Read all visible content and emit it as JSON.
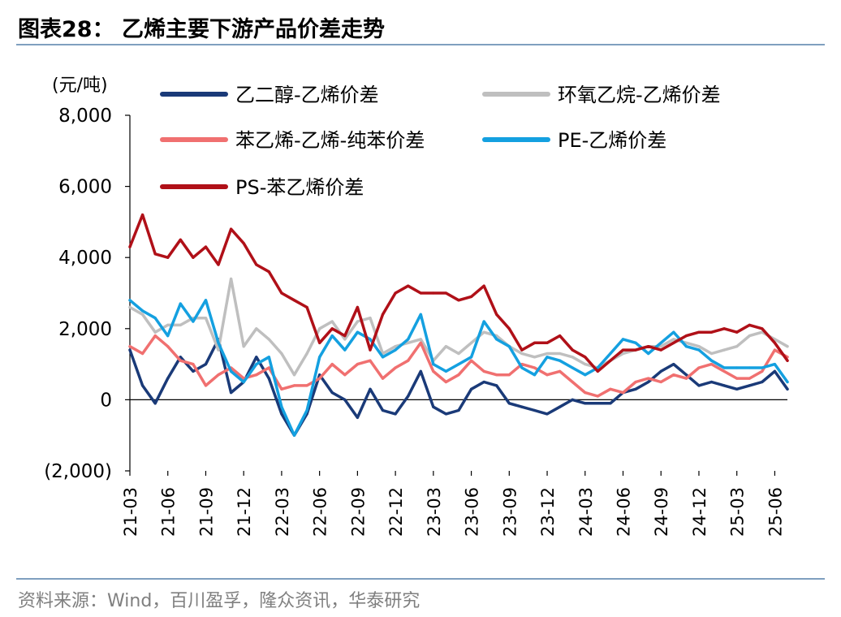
{
  "figure": {
    "title": "图表28： 乙烯主要下游产品价差走势",
    "source": "资料来源：Wind，百川盈孚，隆众资讯，华泰研究"
  },
  "chart_data": {
    "type": "line",
    "ylabel": "(元/吨)",
    "ylim": [
      -2000,
      8000
    ],
    "yticks": [
      8000,
      6000,
      4000,
      2000,
      0,
      -2000
    ],
    "ytick_labels": [
      "8,000",
      "6,000",
      "4,000",
      "2,000",
      "0",
      "(2,000)"
    ],
    "x_range": [
      "2021-03",
      "2025-07"
    ],
    "xtick_labels": [
      "21-03",
      "21-06",
      "21-09",
      "21-12",
      "22-03",
      "22-06",
      "22-09",
      "22-12",
      "23-03",
      "23-06",
      "23-09",
      "23-12",
      "24-03",
      "24-06",
      "24-09",
      "24-12",
      "25-03",
      "25-06"
    ],
    "grid": false,
    "legend_position": "top",
    "series": [
      {
        "name": "乙二醇-乙烯价差",
        "color": "#1a3a78",
        "x": [
          "2021-03",
          "2021-04",
          "2021-05",
          "2021-06",
          "2021-07",
          "2021-08",
          "2021-09",
          "2021-10",
          "2021-11",
          "2021-12",
          "2022-01",
          "2022-02",
          "2022-03",
          "2022-04",
          "2022-05",
          "2022-06",
          "2022-07",
          "2022-08",
          "2022-09",
          "2022-10",
          "2022-11",
          "2022-12",
          "2023-01",
          "2023-02",
          "2023-03",
          "2023-04",
          "2023-05",
          "2023-06",
          "2023-07",
          "2023-08",
          "2023-09",
          "2023-10",
          "2023-11",
          "2023-12",
          "2024-01",
          "2024-02",
          "2024-03",
          "2024-04",
          "2024-05",
          "2024-06",
          "2024-07",
          "2024-08",
          "2024-09",
          "2024-10",
          "2024-11",
          "2024-12",
          "2025-01",
          "2025-02",
          "2025-03",
          "2025-04",
          "2025-05",
          "2025-06",
          "2025-07"
        ],
        "y": [
          1400,
          400,
          -100,
          600,
          1200,
          800,
          1000,
          1700,
          200,
          500,
          1200,
          600,
          -400,
          -1000,
          -400,
          700,
          200,
          0,
          -500,
          300,
          -300,
          -400,
          100,
          800,
          -200,
          -400,
          -300,
          300,
          500,
          400,
          -100,
          -200,
          -300,
          -400,
          -200,
          0,
          -100,
          -100,
          -100,
          200,
          300,
          500,
          800,
          1000,
          700,
          400,
          500,
          400,
          300,
          400,
          500,
          800,
          300
        ]
      },
      {
        "name": "环氧乙烷-乙烯价差",
        "color": "#bfbfbf",
        "x": [
          "2021-03",
          "2021-04",
          "2021-05",
          "2021-06",
          "2021-07",
          "2021-08",
          "2021-09",
          "2021-10",
          "2021-11",
          "2021-12",
          "2022-01",
          "2022-02",
          "2022-03",
          "2022-04",
          "2022-05",
          "2022-06",
          "2022-07",
          "2022-08",
          "2022-09",
          "2022-10",
          "2022-11",
          "2022-12",
          "2023-01",
          "2023-02",
          "2023-03",
          "2023-04",
          "2023-05",
          "2023-06",
          "2023-07",
          "2023-08",
          "2023-09",
          "2023-10",
          "2023-11",
          "2023-12",
          "2024-01",
          "2024-02",
          "2024-03",
          "2024-04",
          "2024-05",
          "2024-06",
          "2024-07",
          "2024-08",
          "2024-09",
          "2024-10",
          "2024-11",
          "2024-12",
          "2025-01",
          "2025-02",
          "2025-03",
          "2025-04",
          "2025-05",
          "2025-06",
          "2025-07"
        ],
        "y": [
          2600,
          2400,
          1900,
          2100,
          2100,
          2300,
          2300,
          1400,
          3400,
          1500,
          2000,
          1700,
          1300,
          700,
          1300,
          2000,
          2200,
          1700,
          2200,
          2300,
          1300,
          1500,
          1600,
          1700,
          1100,
          1500,
          1300,
          1600,
          1900,
          1800,
          1500,
          1300,
          1200,
          1300,
          1300,
          1200,
          1000,
          900,
          1100,
          1300,
          1400,
          1500,
          1500,
          1700,
          1600,
          1500,
          1300,
          1400,
          1500,
          1800,
          1900,
          1700,
          1500
        ]
      },
      {
        "name": "苯乙烯-乙烯-纯苯价差",
        "color": "#f07070",
        "x": [
          "2021-03",
          "2021-04",
          "2021-05",
          "2021-06",
          "2021-07",
          "2021-08",
          "2021-09",
          "2021-10",
          "2021-11",
          "2021-12",
          "2022-01",
          "2022-02",
          "2022-03",
          "2022-04",
          "2022-05",
          "2022-06",
          "2022-07",
          "2022-08",
          "2022-09",
          "2022-10",
          "2022-11",
          "2022-12",
          "2023-01",
          "2023-02",
          "2023-03",
          "2023-04",
          "2023-05",
          "2023-06",
          "2023-07",
          "2023-08",
          "2023-09",
          "2023-10",
          "2023-11",
          "2023-12",
          "2024-01",
          "2024-02",
          "2024-03",
          "2024-04",
          "2024-05",
          "2024-06",
          "2024-07",
          "2024-08",
          "2024-09",
          "2024-10",
          "2024-11",
          "2024-12",
          "2025-01",
          "2025-02",
          "2025-03",
          "2025-04",
          "2025-05",
          "2025-06",
          "2025-07"
        ],
        "y": [
          1500,
          1300,
          1800,
          1500,
          1100,
          1000,
          400,
          700,
          900,
          600,
          700,
          900,
          300,
          400,
          400,
          600,
          1000,
          700,
          1000,
          1100,
          600,
          900,
          1100,
          1600,
          800,
          500,
          700,
          1100,
          800,
          700,
          700,
          1000,
          900,
          700,
          800,
          500,
          200,
          100,
          300,
          200,
          500,
          600,
          500,
          700,
          600,
          900,
          1000,
          800,
          600,
          600,
          800,
          1400,
          1200
        ]
      },
      {
        "name": "PE-乙烯价差",
        "color": "#14a0e0",
        "x": [
          "2021-03",
          "2021-04",
          "2021-05",
          "2021-06",
          "2021-07",
          "2021-08",
          "2021-09",
          "2021-10",
          "2021-11",
          "2021-12",
          "2022-01",
          "2022-02",
          "2022-03",
          "2022-04",
          "2022-05",
          "2022-06",
          "2022-07",
          "2022-08",
          "2022-09",
          "2022-10",
          "2022-11",
          "2022-12",
          "2023-01",
          "2023-02",
          "2023-03",
          "2023-04",
          "2023-05",
          "2023-06",
          "2023-07",
          "2023-08",
          "2023-09",
          "2023-10",
          "2023-11",
          "2023-12",
          "2024-01",
          "2024-02",
          "2024-03",
          "2024-04",
          "2024-05",
          "2024-06",
          "2024-07",
          "2024-08",
          "2024-09",
          "2024-10",
          "2024-11",
          "2024-12",
          "2025-01",
          "2025-02",
          "2025-03",
          "2025-04",
          "2025-05",
          "2025-06",
          "2025-07"
        ],
        "y": [
          2800,
          2500,
          2300,
          1800,
          2700,
          2200,
          2800,
          1600,
          800,
          500,
          1000,
          1200,
          -200,
          -1000,
          -300,
          1200,
          1800,
          1400,
          1900,
          1700,
          1200,
          1400,
          1700,
          2400,
          1000,
          800,
          1000,
          1200,
          2200,
          1700,
          1500,
          900,
          700,
          1200,
          1100,
          900,
          700,
          900,
          1300,
          1700,
          1600,
          1300,
          1600,
          1900,
          1500,
          1400,
          1100,
          900,
          900,
          900,
          900,
          1000,
          500
        ]
      },
      {
        "name": "PS-苯乙烯价差",
        "color": "#b01018",
        "x": [
          "2021-03",
          "2021-04",
          "2021-05",
          "2021-06",
          "2021-07",
          "2021-08",
          "2021-09",
          "2021-10",
          "2021-11",
          "2021-12",
          "2022-01",
          "2022-02",
          "2022-03",
          "2022-04",
          "2022-05",
          "2022-06",
          "2022-07",
          "2022-08",
          "2022-09",
          "2022-10",
          "2022-11",
          "2022-12",
          "2023-01",
          "2023-02",
          "2023-03",
          "2023-04",
          "2023-05",
          "2023-06",
          "2023-07",
          "2023-08",
          "2023-09",
          "2023-10",
          "2023-11",
          "2023-12",
          "2024-01",
          "2024-02",
          "2024-03",
          "2024-04",
          "2024-05",
          "2024-06",
          "2024-07",
          "2024-08",
          "2024-09",
          "2024-10",
          "2024-11",
          "2024-12",
          "2025-01",
          "2025-02",
          "2025-03",
          "2025-04",
          "2025-05",
          "2025-06",
          "2025-07"
        ],
        "y": [
          4300,
          5200,
          4100,
          4000,
          4500,
          4000,
          4300,
          3800,
          4800,
          4400,
          3800,
          3600,
          3000,
          2800,
          2600,
          1600,
          2000,
          1800,
          2600,
          1400,
          2400,
          3000,
          3200,
          3000,
          3000,
          3000,
          2800,
          2900,
          3200,
          2400,
          2000,
          1400,
          1600,
          1600,
          1800,
          1400,
          1200,
          800,
          1100,
          1400,
          1400,
          1500,
          1400,
          1600,
          1800,
          1900,
          1900,
          2000,
          1900,
          2100,
          2000,
          1600,
          1100
        ]
      }
    ]
  }
}
